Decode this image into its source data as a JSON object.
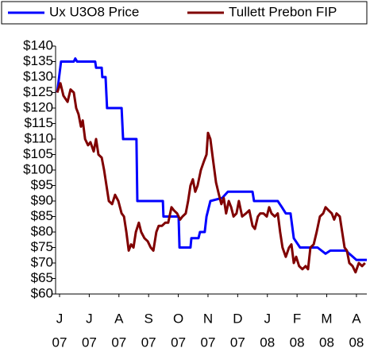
{
  "chart_data": {
    "type": "line",
    "xtick_labels": [
      [
        "J",
        "07"
      ],
      [
        "J",
        "07"
      ],
      [
        "A",
        "07"
      ],
      [
        "S",
        "07"
      ],
      [
        "O",
        "07"
      ],
      [
        "N",
        "07"
      ],
      [
        "D",
        "07"
      ],
      [
        "J",
        "08"
      ],
      [
        "F",
        "08"
      ],
      [
        "M",
        "08"
      ],
      [
        "A",
        "08"
      ]
    ],
    "xticks": [
      0,
      1,
      2,
      3,
      4,
      5,
      6,
      7,
      8,
      9,
      10
    ],
    "xlim": [
      -0.134,
      10.35
    ],
    "ylim": [
      60,
      140
    ],
    "yticks": [
      {
        "value": 60,
        "label": "$60"
      },
      {
        "value": 65,
        "label": "$65"
      },
      {
        "value": 70,
        "label": "$70"
      },
      {
        "value": 75,
        "label": "$75"
      },
      {
        "value": 80,
        "label": "$80"
      },
      {
        "value": 85,
        "label": "$85"
      },
      {
        "value": 90,
        "label": "$90"
      },
      {
        "value": 95,
        "label": "$95"
      },
      {
        "value": 100,
        "label": "$100"
      },
      {
        "value": 105,
        "label": "$105"
      },
      {
        "value": 110,
        "label": "$110"
      },
      {
        "value": 115,
        "label": "$115"
      },
      {
        "value": 120,
        "label": "$120"
      },
      {
        "value": 125,
        "label": "$125"
      },
      {
        "value": 130,
        "label": "$130"
      },
      {
        "value": 135,
        "label": "$135"
      },
      {
        "value": 140,
        "label": "$140"
      }
    ],
    "series": [
      {
        "name": "Ux U3O8 Price",
        "color": "#0000ff",
        "x": [
          -0.08,
          0.05,
          0.48,
          0.53,
          0.59,
          1.2,
          1.23,
          1.42,
          1.44,
          1.55,
          1.6,
          2.09,
          2.14,
          2.59,
          2.62,
          3.48,
          3.5,
          4.01,
          4.04,
          4.41,
          4.44,
          4.68,
          4.73,
          4.89,
          4.95,
          5.08,
          5.48,
          5.67,
          6.5,
          6.55,
          7.35,
          7.49,
          7.62,
          7.78,
          7.89,
          8.1,
          8.69,
          8.96,
          9.12,
          9.65,
          9.76,
          10.0,
          10.35
        ],
        "values": [
          125,
          135,
          135,
          136,
          135,
          135,
          133,
          133,
          130,
          130,
          120,
          120,
          110,
          110,
          90,
          90,
          85,
          85,
          75,
          75,
          78,
          78,
          80,
          80,
          85,
          90,
          91,
          93,
          93,
          90,
          90,
          88,
          86,
          86,
          78,
          75,
          75,
          73,
          74,
          74,
          73,
          71,
          71
        ]
      },
      {
        "name": "Tullett Prebon FIP",
        "color": "#800000",
        "x": [
          -0.08,
          0.03,
          0.13,
          0.27,
          0.37,
          0.48,
          0.56,
          0.64,
          0.72,
          0.78,
          0.86,
          0.96,
          1.04,
          1.15,
          1.23,
          1.31,
          1.42,
          1.5,
          1.58,
          1.66,
          1.77,
          1.87,
          1.98,
          2.09,
          2.17,
          2.25,
          2.33,
          2.41,
          2.49,
          2.57,
          2.67,
          2.75,
          2.86,
          2.97,
          3.07,
          3.16,
          3.26,
          3.34,
          3.45,
          3.56,
          3.66,
          3.77,
          3.85,
          3.96,
          4.06,
          4.14,
          4.25,
          4.33,
          4.41,
          4.49,
          4.57,
          4.65,
          4.76,
          4.87,
          4.95,
          5.0,
          5.08,
          5.16,
          5.27,
          5.37,
          5.45,
          5.53,
          5.61,
          5.7,
          5.78,
          5.86,
          5.96,
          6.04,
          6.15,
          6.28,
          6.39,
          6.5,
          6.58,
          6.68,
          6.76,
          6.87,
          6.98,
          7.06,
          7.14,
          7.25,
          7.35,
          7.43,
          7.51,
          7.62,
          7.73,
          7.81,
          7.89,
          7.97,
          8.07,
          8.18,
          8.29,
          8.37,
          8.45,
          8.56,
          8.66,
          8.77,
          8.88,
          8.96,
          9.06,
          9.17,
          9.25,
          9.33,
          9.44,
          9.52,
          9.6,
          9.68,
          9.76,
          9.87,
          9.97,
          10.08,
          10.19,
          10.29
        ],
        "values": [
          125,
          128,
          124,
          122,
          126,
          125,
          120,
          118,
          114,
          116,
          110,
          108,
          109,
          106,
          110,
          105,
          104,
          100,
          95,
          90,
          89,
          92,
          90,
          86,
          85,
          80,
          74,
          76,
          75,
          80,
          83,
          80,
          78,
          77,
          75,
          74,
          80,
          82,
          82,
          83,
          83,
          88,
          87,
          86,
          84,
          85,
          86,
          90,
          95,
          97,
          93,
          95,
          100,
          103,
          105,
          112,
          110,
          104,
          96,
          92,
          89,
          91,
          86,
          90,
          88,
          85,
          86,
          90,
          85,
          86,
          87,
          82,
          81,
          85,
          86,
          86,
          85,
          88,
          86,
          85,
          86,
          80,
          75,
          72,
          75,
          76,
          70,
          72,
          69,
          68,
          69,
          68,
          75,
          76,
          80,
          85,
          86,
          88,
          87,
          86,
          84,
          86,
          85,
          80,
          75,
          74,
          70,
          69,
          67,
          70,
          69,
          70
        ]
      }
    ]
  }
}
